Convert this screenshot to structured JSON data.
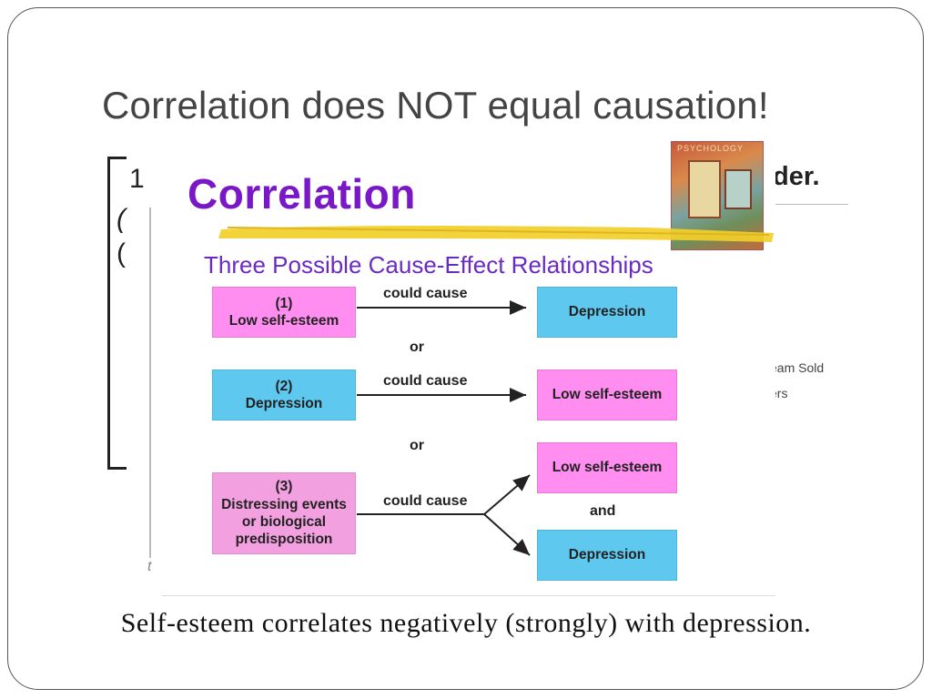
{
  "slide": {
    "title": "Correlation does NOT equal causation!",
    "caption": "Self-esteem correlates negatively (strongly) with depression."
  },
  "background_slide": {
    "fragments": [
      "1",
      "(",
      "(",
      "der.",
      "eam Sold",
      "ers",
      "t"
    ]
  },
  "book_cover": {
    "text": "PSYCHOLOGY"
  },
  "diagram": {
    "heading": "Correlation",
    "subheading": "Three Possible Cause-Effect Relationships",
    "rows": [
      {
        "cause": "(1)\nLow self-esteem",
        "arrow_label": "could cause",
        "effect": "Depression"
      },
      {
        "cause": "(2)\nDepression",
        "arrow_label": "could cause",
        "effect": "Low self-esteem"
      },
      {
        "cause": "(3)\nDistressing events\nor biological\npredisposition",
        "arrow_label": "could cause",
        "effects": [
          "Low self-esteem",
          "Depression"
        ],
        "joiner": "and"
      }
    ],
    "separators": [
      "or",
      "or"
    ]
  },
  "colors": {
    "heading": "#7a18c8",
    "pink": "#ff8ef0",
    "cyan": "#5fc8ef",
    "highlighter": "#f2cf2a"
  }
}
